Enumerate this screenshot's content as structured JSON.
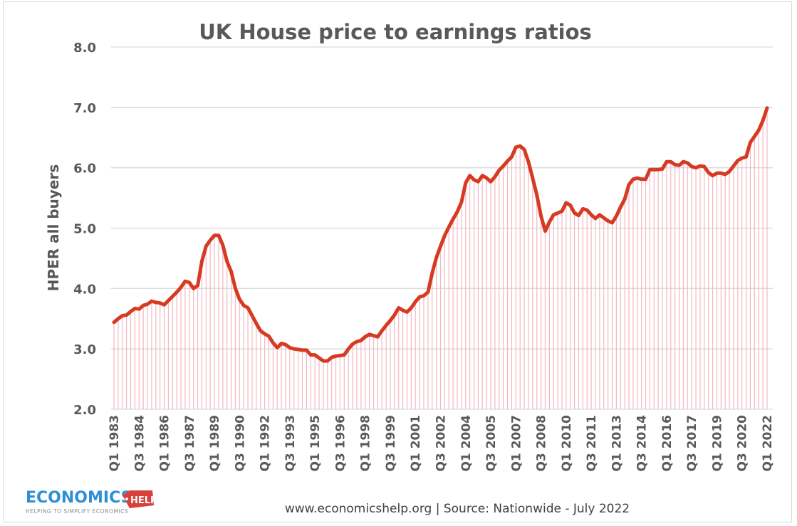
{
  "chart_data": {
    "type": "line",
    "title": "UK House price to earnings ratios",
    "xlabel": "",
    "ylabel": "HPER all buyers",
    "ylim": [
      2.0,
      8.0
    ],
    "yticks": [
      "2.0",
      "3.0",
      "4.0",
      "5.0",
      "6.0",
      "7.0",
      "8.0"
    ],
    "x_start": "Q1 1983",
    "x_end": "Q1 2022",
    "frequency": "quarterly",
    "xtick_labels": [
      "Q1 1983",
      "Q3 1984",
      "Q1 1986",
      "Q3 1987",
      "Q1 1989",
      "Q3 1990",
      "Q1 1992",
      "Q3 1993",
      "Q1 1995",
      "Q3 1996",
      "Q1 1998",
      "Q3 1999",
      "Q1 2001",
      "Q3 2002",
      "Q1 2004",
      "Q3 2005",
      "Q1 2007",
      "Q3 2008",
      "Q1 2010",
      "Q3 2011",
      "Q1 2013",
      "Q3 2014",
      "Q1 2016",
      "Q3 2017",
      "Q1 2019",
      "Q3 2020",
      "Q1 2022"
    ],
    "grid": "horizontal",
    "line_color": "#d63a22",
    "fill_color": "#f4b8c2",
    "values": [
      3.44,
      3.5,
      3.55,
      3.56,
      3.62,
      3.67,
      3.66,
      3.72,
      3.74,
      3.79,
      3.77,
      3.76,
      3.73,
      3.8,
      3.87,
      3.94,
      4.02,
      4.12,
      4.1,
      4.0,
      4.05,
      4.45,
      4.7,
      4.8,
      4.88,
      4.88,
      4.72,
      4.45,
      4.28,
      4.0,
      3.82,
      3.72,
      3.68,
      3.55,
      3.42,
      3.3,
      3.25,
      3.21,
      3.1,
      3.02,
      3.09,
      3.07,
      3.02,
      3.0,
      2.99,
      2.98,
      2.98,
      2.9,
      2.9,
      2.85,
      2.8,
      2.8,
      2.86,
      2.88,
      2.89,
      2.9,
      3.0,
      3.08,
      3.12,
      3.14,
      3.2,
      3.24,
      3.22,
      3.2,
      3.3,
      3.39,
      3.47,
      3.56,
      3.68,
      3.64,
      3.61,
      3.68,
      3.78,
      3.86,
      3.88,
      3.94,
      4.25,
      4.51,
      4.7,
      4.88,
      5.02,
      5.15,
      5.27,
      5.43,
      5.75,
      5.87,
      5.8,
      5.77,
      5.87,
      5.83,
      5.77,
      5.85,
      5.96,
      6.03,
      6.11,
      6.18,
      6.34,
      6.36,
      6.3,
      6.1,
      5.83,
      5.55,
      5.2,
      4.95,
      5.1,
      5.22,
      5.25,
      5.28,
      5.42,
      5.38,
      5.25,
      5.21,
      5.32,
      5.3,
      5.22,
      5.16,
      5.22,
      5.17,
      5.12,
      5.09,
      5.2,
      5.35,
      5.48,
      5.72,
      5.81,
      5.83,
      5.81,
      5.81,
      5.97,
      5.97,
      5.97,
      5.98,
      6.1,
      6.1,
      6.05,
      6.04,
      6.1,
      6.08,
      6.02,
      6.0,
      6.03,
      6.02,
      5.92,
      5.87,
      5.91,
      5.91,
      5.89,
      5.94,
      6.03,
      6.12,
      6.16,
      6.18,
      6.42,
      6.52,
      6.62,
      6.78,
      6.99
    ]
  },
  "footer": {
    "source": "www.economicshelp.org  | Source:  Nationwide - July 2022"
  },
  "logo": {
    "main": "ECONOMICS",
    "tag": "HELP",
    "tagline": "HELPING TO SIMPLIFY ECONOMICS"
  }
}
